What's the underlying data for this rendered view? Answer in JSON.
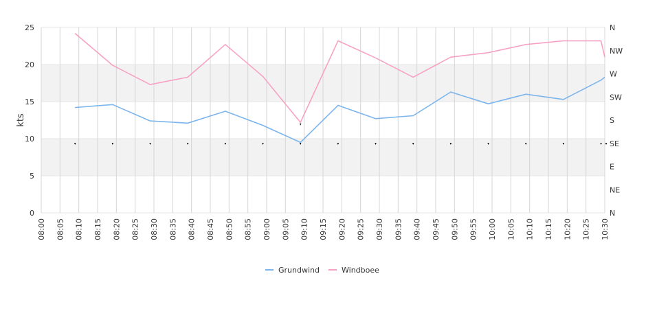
{
  "chart_data": {
    "type": "line",
    "ylabel": "kts",
    "ylim": [
      0,
      25
    ],
    "y_ticks": [
      "0",
      "5",
      "10",
      "15",
      "20",
      "25"
    ],
    "x_ticks": [
      "08:00",
      "08:05",
      "08:10",
      "08:15",
      "08:20",
      "08:25",
      "08:30",
      "08:35",
      "08:40",
      "08:45",
      "08:50",
      "08:55",
      "09:00",
      "09:05",
      "09:10",
      "09:15",
      "09:20",
      "09:25",
      "09:30",
      "09:35",
      "09:40",
      "09:45",
      "09:50",
      "09:55",
      "10:00",
      "10:05",
      "10:10",
      "10:15",
      "10:20",
      "10:25",
      "10:30"
    ],
    "x_range_minutes": [
      0,
      150
    ],
    "right_axis_ticks": [
      "N",
      "NE",
      "E",
      "SE",
      "S",
      "SW",
      "W",
      "NW",
      "N"
    ],
    "bands": [
      [
        5,
        10
      ],
      [
        15,
        20
      ]
    ],
    "direction_marker_level": 9.3,
    "series": [
      {
        "name": "Grundwind",
        "color": "#7cb5ec",
        "x_minutes": [
          9,
          19,
          29,
          39,
          49,
          59,
          69,
          79,
          89,
          99,
          109,
          119,
          129,
          139,
          149,
          150
        ],
        "values": [
          14.2,
          14.6,
          12.4,
          12.1,
          13.7,
          11.8,
          9.5,
          14.5,
          12.7,
          13.1,
          16.3,
          14.7,
          16.0,
          15.3,
          17.9,
          18.3
        ]
      },
      {
        "name": "Windboee",
        "color": "#f7a1c4",
        "x_minutes": [
          9,
          19,
          29,
          39,
          49,
          59,
          69,
          79,
          89,
          99,
          109,
          119,
          129,
          139,
          149,
          150
        ],
        "values": [
          24.2,
          19.9,
          17.3,
          18.3,
          22.7,
          18.4,
          12.2,
          23.2,
          20.9,
          18.3,
          21.0,
          21.6,
          22.7,
          23.2,
          23.2,
          21.0
        ]
      }
    ],
    "direction_markers_x_minutes": [
      9,
      19,
      29,
      39,
      49,
      59,
      69,
      79,
      89,
      99,
      109,
      119,
      129,
      139,
      149,
      150
    ],
    "legend_position": "bottom-center",
    "grid": true
  }
}
